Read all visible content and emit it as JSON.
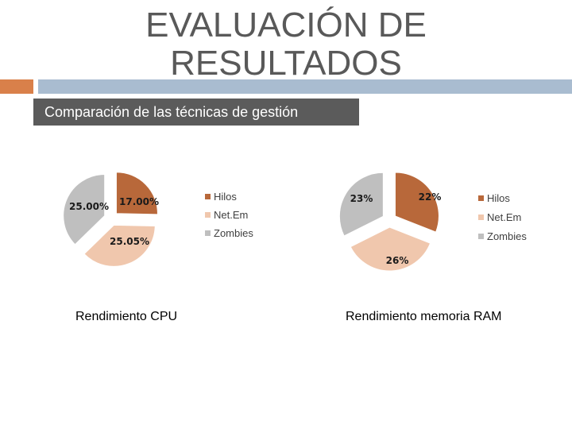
{
  "slide": {
    "title_line1": "EVALUACIÓN DE",
    "title_line2": "RESULTADOS",
    "subheader": "Comparación de las técnicas de gestión"
  },
  "colors": {
    "accent_orange": "#d9804a",
    "accent_blue": "#a9bcd0",
    "subheader_bg": "#5b5b5b",
    "hilos": "#b8683a",
    "netem": "#f0c7ad",
    "zombies": "#bfbfbf"
  },
  "chart_data": [
    {
      "type": "pie",
      "title": "Rendimiento CPU",
      "categories": [
        "Hilos",
        "Net.Em",
        "Zombies"
      ],
      "values": [
        17.0,
        25.05,
        25.0
      ],
      "labels": [
        "17.00%",
        "25.05%",
        "25.00%"
      ],
      "exploded": true,
      "legend": "right"
    },
    {
      "type": "pie",
      "title": "Rendimiento memoria RAM",
      "categories": [
        "Hilos",
        "Net.Em",
        "Zombies"
      ],
      "values": [
        22,
        26,
        23
      ],
      "labels": [
        "22%",
        "26%",
        "23%"
      ],
      "exploded": true,
      "legend": "right"
    }
  ]
}
